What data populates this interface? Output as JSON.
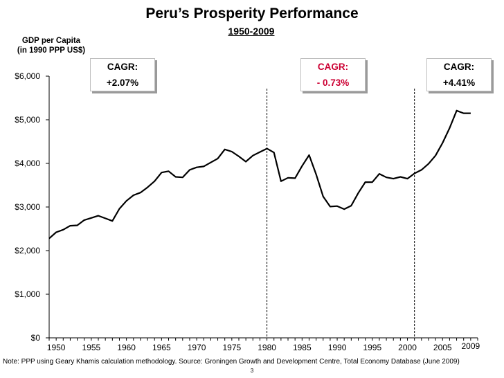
{
  "header": {
    "title": "Peru’s Prosperity Performance",
    "subtitle": "1950-2009",
    "ylabel_line1": "GDP per Capita",
    "ylabel_line2": "(in 1990 PPP US$)"
  },
  "cagr_boxes": [
    {
      "label": "CAGR:",
      "value": "+2.07%",
      "color": "#000000"
    },
    {
      "label": "CAGR:",
      "value": "- 0.73%",
      "color": "#cc0033"
    },
    {
      "label": "CAGR:",
      "value": "+4.41%",
      "color": "#000000"
    }
  ],
  "chart_data": {
    "type": "line",
    "title": "Peru’s Prosperity Performance",
    "subtitle": "1950-2009",
    "ylabel": "GDP per Capita (in 1990 PPP US$)",
    "xlabel": "",
    "xlim": [
      1949,
      2010
    ],
    "ylim": [
      0,
      6000
    ],
    "yticks": [
      0,
      1000,
      2000,
      3000,
      4000,
      5000,
      6000
    ],
    "ytick_labels": [
      "$0",
      "$1,000",
      "$2,000",
      "$3,000",
      "$4,000",
      "$5,000",
      "$6,000"
    ],
    "xticks": [
      1950,
      1955,
      1960,
      1965,
      1970,
      1975,
      1980,
      1985,
      1990,
      1995,
      2000,
      2005,
      2009
    ],
    "xtick_labels": [
      "1950",
      "1955",
      "1960",
      "1965",
      "1970",
      "1975",
      "1980",
      "1985",
      "1990",
      "1995",
      "2000",
      "2005",
      "2009"
    ],
    "x": [
      1949,
      1950,
      1951,
      1952,
      1953,
      1954,
      1955,
      1956,
      1957,
      1958,
      1959,
      1960,
      1961,
      1962,
      1963,
      1964,
      1965,
      1966,
      1967,
      1968,
      1969,
      1970,
      1971,
      1972,
      1973,
      1974,
      1975,
      1976,
      1977,
      1978,
      1979,
      1980,
      1981,
      1982,
      1983,
      1984,
      1985,
      1986,
      1987,
      1988,
      1989,
      1990,
      1991,
      1992,
      1993,
      1994,
      1995,
      1996,
      1997,
      1998,
      1999,
      2000,
      2001,
      2002,
      2003,
      2004,
      2005,
      2006,
      2007,
      2008,
      2009
    ],
    "y": [
      2280,
      2420,
      2480,
      2570,
      2580,
      2700,
      2750,
      2800,
      2740,
      2680,
      2960,
      3140,
      3270,
      3330,
      3450,
      3590,
      3790,
      3820,
      3690,
      3680,
      3850,
      3910,
      3930,
      4020,
      4110,
      4320,
      4270,
      4160,
      4040,
      4180,
      4260,
      4340,
      4250,
      3590,
      3670,
      3660,
      3940,
      4190,
      3750,
      3240,
      3010,
      3020,
      2950,
      3030,
      3320,
      3570,
      3570,
      3760,
      3680,
      3650,
      3690,
      3650,
      3770,
      3850,
      3990,
      4180,
      4470,
      4810,
      5210,
      5150,
      5150
    ],
    "series_name": "GDP per Capita",
    "period_dividers": [
      1980,
      2001
    ],
    "grid": false,
    "note": "Note: PPP using Geary Khamis calculation methodology. Source: Groningen Growth and Development Centre, Total Economy Database (June 2009)",
    "page_number": "3"
  }
}
